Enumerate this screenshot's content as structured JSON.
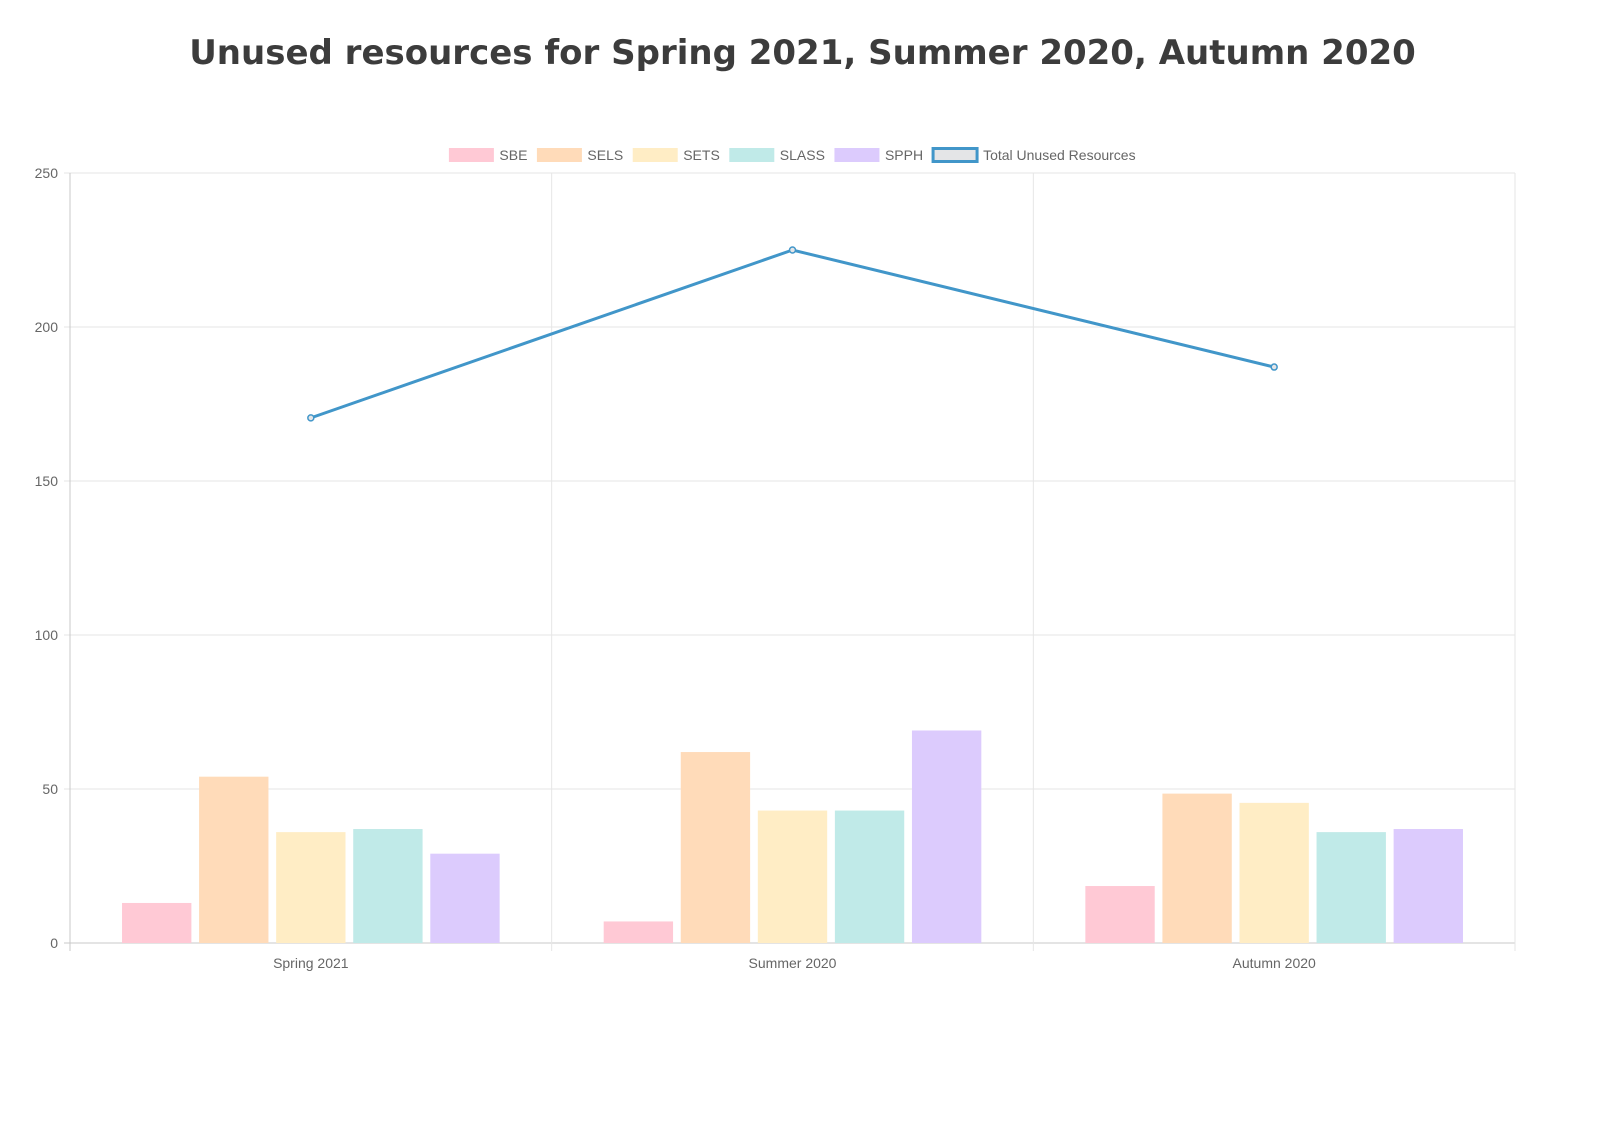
{
  "chart_data": {
    "type": "bar",
    "title": "Unused resources for Spring 2021, Summer 2020, Autumn 2020",
    "categories": [
      "Spring 2021",
      "Summer 2020",
      "Autumn 2020"
    ],
    "ylim": [
      0,
      250
    ],
    "yticks": [
      0,
      50,
      100,
      150,
      200,
      250
    ],
    "grid": true,
    "legend_position": "top-center",
    "series": [
      {
        "name": "SBE",
        "type": "bar",
        "values": [
          13,
          7,
          18.5
        ],
        "color": "#ffc9d5",
        "border": "#ffc9d5"
      },
      {
        "name": "SELS",
        "type": "bar",
        "values": [
          54,
          62,
          48.5
        ],
        "color": "#ffdbb9",
        "border": "#ffdbb9"
      },
      {
        "name": "SETS",
        "type": "bar",
        "values": [
          36,
          43,
          45.5
        ],
        "color": "#ffedc5",
        "border": "#ffedc5"
      },
      {
        "name": "SLASS",
        "type": "bar",
        "values": [
          37,
          43,
          36
        ],
        "color": "#c0eae8",
        "border": "#c0eae8"
      },
      {
        "name": "SPPH",
        "type": "bar",
        "values": [
          29,
          69,
          37
        ],
        "color": "#dccbfd",
        "border": "#dccbfd"
      },
      {
        "name": "Total Unused Resources",
        "type": "line",
        "values": [
          170.5,
          225,
          187
        ],
        "color": "#e4e5e7",
        "border": "#4196c9"
      }
    ]
  }
}
